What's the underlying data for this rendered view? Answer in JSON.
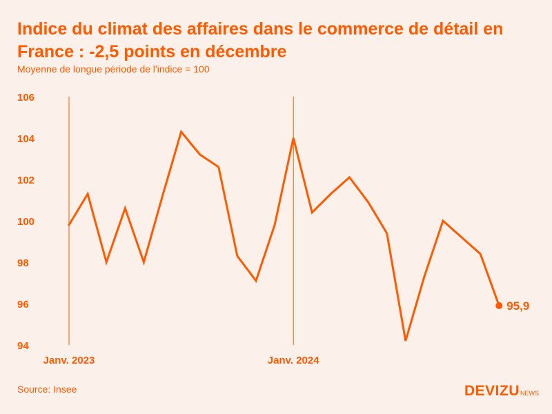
{
  "title": "Indice du climat des affaires dans le commerce de détail en France : -2,5 points en décembre",
  "subtitle": "Moyenne de longue période de l'indice = 100",
  "source": "Source: Insee",
  "brand": {
    "main": "DEVIZU",
    "sub": "NEWS"
  },
  "colors": {
    "accent": "#ff5a00",
    "background": "#fbf0ea"
  },
  "chart_data": {
    "type": "line",
    "x": [
      "2023-01",
      "2023-02",
      "2023-03",
      "2023-04",
      "2023-05",
      "2023-06",
      "2023-07",
      "2023-08",
      "2023-09",
      "2023-10",
      "2023-11",
      "2023-12",
      "2024-01",
      "2024-02",
      "2024-03",
      "2024-04",
      "2024-05",
      "2024-06",
      "2024-07",
      "2024-08",
      "2024-09",
      "2024-10",
      "2024-11",
      "2024-12"
    ],
    "values": [
      99.8,
      101.3,
      98.0,
      100.6,
      98.0,
      101.2,
      104.3,
      103.2,
      102.6,
      98.3,
      97.1,
      99.8,
      104.0,
      100.4,
      101.3,
      102.1,
      100.9,
      99.4,
      94.2,
      97.3,
      100.0,
      99.2,
      98.4,
      95.9
    ],
    "ylim": [
      94,
      106
    ],
    "yticks": [
      94,
      96,
      98,
      100,
      102,
      104,
      106
    ],
    "ytick_labels": [
      "94",
      "96",
      "98",
      "100",
      "102",
      "104",
      "106"
    ],
    "xmarkers": [
      {
        "x": "2023-01",
        "label": "Janv. 2023"
      },
      {
        "x": "2024-01",
        "label": "Janv. 2024"
      }
    ],
    "end_label": "95,9",
    "grid": false
  }
}
